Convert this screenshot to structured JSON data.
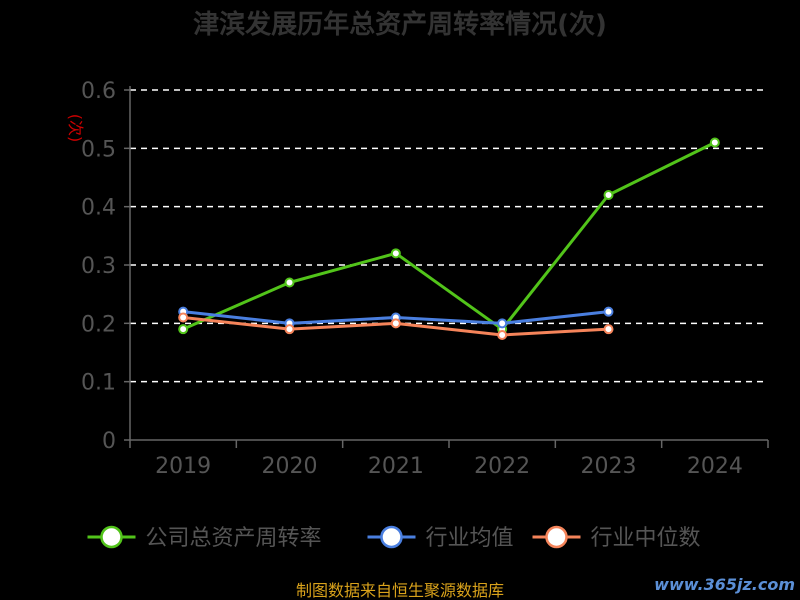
{
  "chart_data": {
    "type": "line",
    "title": "津滨发展历年总资产周转率情况(次)",
    "ylabel": "(次)",
    "categories": [
      "2019",
      "2020",
      "2021",
      "2022",
      "2023",
      "2024"
    ],
    "ylim": [
      0,
      0.6
    ],
    "yticks": [
      "0",
      "0.1",
      "0.2",
      "0.3",
      "0.4",
      "0.5",
      "0.6"
    ],
    "grid": true,
    "legend_position": "bottom",
    "series": [
      {
        "name": "公司总资产周转率",
        "color": "#52c41a",
        "values": [
          0.19,
          0.27,
          0.32,
          0.19,
          0.42,
          0.51
        ]
      },
      {
        "name": "行业均值",
        "color": "#4a7fe0",
        "values": [
          0.22,
          0.2,
          0.21,
          0.2,
          0.22,
          null
        ]
      },
      {
        "name": "行业中位数",
        "color": "#f5845a",
        "values": [
          0.21,
          0.19,
          0.2,
          0.18,
          0.19,
          null
        ]
      }
    ]
  },
  "source_note": "制图数据来自恒生聚源数据库",
  "watermark": "www.365jz.com"
}
